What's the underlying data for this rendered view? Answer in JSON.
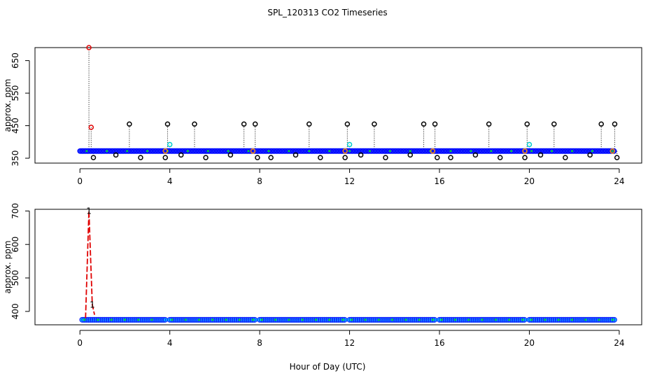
{
  "figure": {
    "title": "SPL_120313  CO2 Timeseries",
    "xlabel": "Hour of Day (UTC)"
  },
  "chart_data": [
    {
      "type": "scatter",
      "title": "SPL_120313  CO2 Timeseries",
      "ylabel": "approx. ppm",
      "xlim": [
        -2.0,
        25.0
      ],
      "ylim": [
        335,
        690
      ],
      "x_ticks": [
        0,
        4,
        8,
        12,
        16,
        20,
        24
      ],
      "y_ticks": [
        350,
        450,
        550,
        650
      ],
      "baseline": {
        "name": "",
        "color": "#0000ff",
        "x_start": 0.0,
        "x_end": 23.8,
        "y": 372
      },
      "series": [
        {
          "name": "",
          "color": "#000000",
          "x": [
            2.2,
            3.9,
            5.1,
            7.3,
            7.8,
            10.2,
            11.9,
            13.1,
            15.3,
            15.8,
            18.2,
            19.9,
            21.1,
            23.2,
            23.8
          ],
          "y": [
            455,
            455,
            455,
            455,
            455,
            455,
            455,
            455,
            455,
            455,
            455,
            455,
            455,
            455,
            455
          ]
        },
        {
          "name": "",
          "color": "#000000",
          "x": [
            0.6,
            1.6,
            2.7,
            3.8,
            4.5,
            5.6,
            6.7,
            7.9,
            8.5,
            9.6,
            10.7,
            11.8,
            12.5,
            13.6,
            14.7,
            15.9,
            16.5,
            17.6,
            18.7,
            19.8,
            20.5,
            21.6,
            22.7,
            23.9
          ],
          "y": [
            352,
            360,
            352,
            352,
            360,
            352,
            360,
            352,
            352,
            360,
            352,
            352,
            360,
            352,
            360,
            352,
            352,
            360,
            352,
            352,
            360,
            352,
            360,
            352
          ]
        },
        {
          "name": "",
          "color": "#e00000",
          "x": [
            0.4,
            0.5
          ],
          "y": [
            690,
            445
          ]
        },
        {
          "name": "",
          "color": "#00cccc",
          "x": [
            4.0,
            12.0,
            20.0
          ],
          "y": [
            392,
            392,
            392
          ]
        },
        {
          "name": "",
          "color": "#ff8c00",
          "x": [
            3.8,
            7.7,
            11.8,
            15.7,
            19.8,
            23.7
          ],
          "y": [
            372,
            372,
            372,
            372,
            372,
            372
          ]
        }
      ]
    },
    {
      "type": "line",
      "ylabel": "approx. ppm",
      "xlim": [
        -2.0,
        25.0
      ],
      "ylim": [
        360,
        705
      ],
      "x_ticks": [
        0,
        4,
        8,
        12,
        16,
        20,
        24
      ],
      "y_ticks": [
        400,
        500,
        600,
        700
      ],
      "series": [
        {
          "name": "",
          "color": "#e00000",
          "x": [
            0.25,
            0.4,
            0.55,
            0.65
          ],
          "y": [
            380,
            700,
            420,
            390
          ],
          "labels": [
            "",
            "1",
            "1",
            ""
          ]
        }
      ],
      "baseline_segments": [
        {
          "x_start": 0.1,
          "x_end": 3.8,
          "y": 375
        },
        {
          "x_start": 4.0,
          "x_end": 7.8,
          "y": 375
        },
        {
          "x_start": 8.0,
          "x_end": 11.8,
          "y": 375
        },
        {
          "x_start": 12.0,
          "x_end": 15.8,
          "y": 375
        },
        {
          "x_start": 16.0,
          "x_end": 19.8,
          "y": 375
        },
        {
          "x_start": 20.0,
          "x_end": 23.8,
          "y": 375
        }
      ]
    }
  ]
}
